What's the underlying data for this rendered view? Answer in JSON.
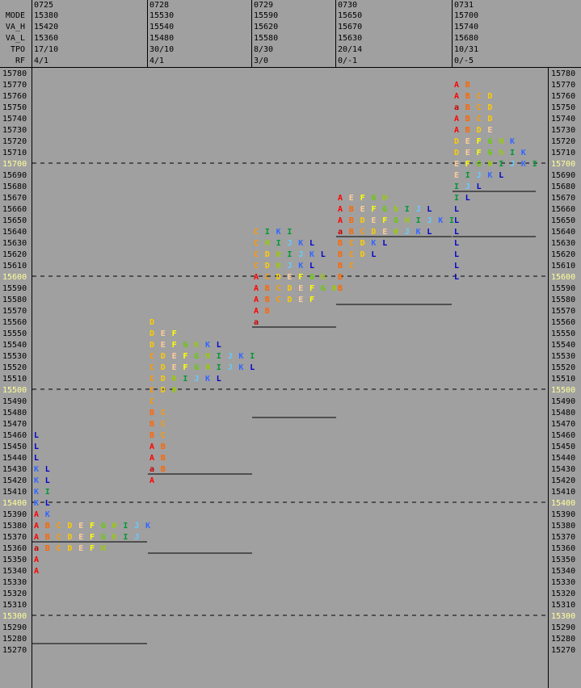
{
  "header": {
    "labels": [
      "MODE",
      "VA_H",
      "VA_L",
      "TPO",
      "RF"
    ],
    "days": [
      {
        "date": "0725",
        "mode": "15380",
        "va_h": "15420",
        "va_l": "15360",
        "tpo": "17/10",
        "rf": "4/1"
      },
      {
        "date": "0728",
        "mode": "15530",
        "va_h": "15540",
        "va_l": "15480",
        "tpo": "30/10",
        "rf": "4/1"
      },
      {
        "date": "0729",
        "mode": "15590",
        "va_h": "15620",
        "va_l": "15580",
        "tpo": "8/30",
        "rf": "3/0"
      },
      {
        "date": "0730",
        "mode": "15650",
        "va_h": "15670",
        "va_l": "15630",
        "tpo": "20/14",
        "rf": "0/-1"
      },
      {
        "date": "0731",
        "mode": "15700",
        "va_h": "15740",
        "va_l": "15680",
        "tpo": "10/31",
        "rf": "0/-5"
      }
    ]
  },
  "colors": {
    "background": "#a0a0a0",
    "major_price": "#ffff99",
    "letters": {
      "A": "#ff0000",
      "a": "#cc0000",
      "B": "#ff6600",
      "C": "#ff9900",
      "D": "#ffcc00",
      "E": "#ffcc99",
      "F": "#ffff00",
      "G": "#66cc00",
      "g": "#66cc00",
      "H": "#99cc00",
      "h": "#99cc00",
      "I": "#009933",
      "i": "#009933",
      "J": "#66ccff",
      "j": "#66ccff",
      "K": "#3366ff",
      "L": "#0000cc"
    }
  },
  "chart_data": {
    "type": "table",
    "y_range": [
      15270,
      15780
    ],
    "tick_step": 10,
    "major_ticks": [
      15300,
      15400,
      15500,
      15600,
      15700
    ],
    "days": [
      {
        "date": "0725",
        "rows": [
          {
            "price": 15460,
            "letters": "L"
          },
          {
            "price": 15450,
            "letters": "L"
          },
          {
            "price": 15440,
            "letters": "L"
          },
          {
            "price": 15430,
            "letters": "KL"
          },
          {
            "price": 15420,
            "letters": "KL"
          },
          {
            "price": 15410,
            "letters": "KI"
          },
          {
            "price": 15400,
            "letters": "KL"
          },
          {
            "price": 15390,
            "letters": "AK"
          },
          {
            "price": 15380,
            "letters": "ABCDEFGHIJK"
          },
          {
            "price": 15370,
            "letters": "ABCDEFGhIJ"
          },
          {
            "price": 15360,
            "letters": "aBCDEFH"
          },
          {
            "price": 15350,
            "letters": "A"
          },
          {
            "price": 15340,
            "letters": "A"
          }
        ]
      },
      {
        "date": "0728",
        "rows": [
          {
            "price": 15560,
            "letters": "D"
          },
          {
            "price": 15550,
            "letters": "DEF"
          },
          {
            "price": 15540,
            "letters": "DEFGhKL"
          },
          {
            "price": 15530,
            "letters": "CDEFGHIJKI"
          },
          {
            "price": 15520,
            "letters": "CDEFGHIJKL"
          },
          {
            "price": 15510,
            "letters": "CDHIJKL"
          },
          {
            "price": 15500,
            "letters": "CDH"
          },
          {
            "price": 15490,
            "letters": "C"
          },
          {
            "price": 15480,
            "letters": "BC"
          },
          {
            "price": 15470,
            "letters": "BC"
          },
          {
            "price": 15460,
            "letters": "BC"
          },
          {
            "price": 15450,
            "letters": "AB"
          },
          {
            "price": 15440,
            "letters": "AB"
          },
          {
            "price": 15430,
            "letters": "aB"
          },
          {
            "price": 15420,
            "letters": "A"
          }
        ]
      },
      {
        "date": "0729",
        "rows": [
          {
            "price": 15640,
            "letters": "CIKI"
          },
          {
            "price": 15630,
            "letters": "CHIJKL"
          },
          {
            "price": 15620,
            "letters": "CDHIJKL"
          },
          {
            "price": 15610,
            "letters": "CDHJKL"
          },
          {
            "price": 15600,
            "letters": "ACDEFGh"
          },
          {
            "price": 15590,
            "letters": "ABCDEFGH"
          },
          {
            "price": 15580,
            "letters": "ABCDEF"
          },
          {
            "price": 15570,
            "letters": "AB"
          },
          {
            "price": 15560,
            "letters": "a"
          }
        ]
      },
      {
        "date": "0730",
        "rows": [
          {
            "price": 15670,
            "letters": "AEFGH"
          },
          {
            "price": 15660,
            "letters": "ABEFGhIJL"
          },
          {
            "price": 15650,
            "letters": "ABDEFGHIJKI"
          },
          {
            "price": 15640,
            "letters": "aBCDEHJKL"
          },
          {
            "price": 15630,
            "letters": "BCDKL"
          },
          {
            "price": 15620,
            "letters": "BCDL"
          },
          {
            "price": 15610,
            "letters": "BC"
          },
          {
            "price": 15600,
            "letters": "B"
          },
          {
            "price": 15590,
            "letters": "B"
          }
        ]
      },
      {
        "date": "0731",
        "rows": [
          {
            "price": 15770,
            "letters": "AB"
          },
          {
            "price": 15760,
            "letters": "ABCD"
          },
          {
            "price": 15750,
            "letters": "aBCD"
          },
          {
            "price": 15740,
            "letters": "ABCD"
          },
          {
            "price": 15730,
            "letters": "ABDE"
          },
          {
            "price": 15720,
            "letters": "DEFGHK"
          },
          {
            "price": 15710,
            "letters": "DEFGhIK"
          },
          {
            "price": 15700,
            "letters": "EFGHIJKI"
          },
          {
            "price": 15690,
            "letters": "EIJKL"
          },
          {
            "price": 15680,
            "letters": "IJL"
          },
          {
            "price": 15670,
            "letters": "IL"
          },
          {
            "price": 15660,
            "letters": "L"
          },
          {
            "price": 15650,
            "letters": "L"
          },
          {
            "price": 15640,
            "letters": "L"
          },
          {
            "price": 15630,
            "letters": "L"
          },
          {
            "price": 15620,
            "letters": "L"
          },
          {
            "price": 15610,
            "letters": "L"
          },
          {
            "price": 15600,
            "letters": "L"
          }
        ]
      }
    ],
    "range_lines": [
      {
        "day": 0,
        "price_below": 15370
      },
      {
        "day": 0,
        "price_below": 15280
      },
      {
        "day": 1,
        "price_below": 15430
      },
      {
        "day": 1,
        "price_below": 15360
      },
      {
        "day": 2,
        "price_below": 15560
      },
      {
        "day": 2,
        "price_below": 15480
      },
      {
        "day": 3,
        "price_below": 15640
      },
      {
        "day": 3,
        "price_below": 15580
      },
      {
        "day": 4,
        "price_below": 15680
      },
      {
        "day": 4,
        "price_below": 15640
      }
    ]
  }
}
